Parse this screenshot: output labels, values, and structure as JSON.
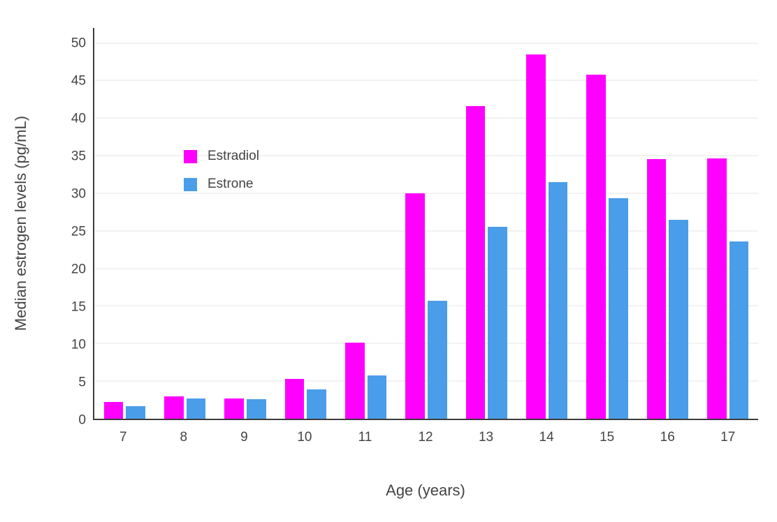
{
  "chart_data": {
    "type": "bar",
    "title": "",
    "xlabel": "Age (years)",
    "ylabel": "Median estrogen levels (pg/mL)",
    "categories": [
      "7",
      "8",
      "9",
      "10",
      "11",
      "12",
      "13",
      "14",
      "15",
      "16",
      "17"
    ],
    "series": [
      {
        "name": "Estradiol",
        "color": "#FF00FF",
        "values": [
          2.2,
          3.0,
          2.7,
          5.3,
          10.1,
          30.0,
          41.6,
          48.5,
          45.8,
          34.5,
          34.6
        ]
      },
      {
        "name": "Estrone",
        "color": "#4A9DE8",
        "values": [
          1.7,
          2.7,
          2.6,
          3.9,
          5.8,
          15.7,
          25.5,
          31.5,
          29.3,
          26.5,
          23.6
        ]
      }
    ],
    "ylim": [
      0,
      52
    ],
    "yticks": [
      0,
      5,
      10,
      15,
      20,
      25,
      30,
      35,
      40,
      45,
      50
    ],
    "grid": "horizontal",
    "legend_position": "inside-upper-left",
    "axis_color": "#3d3d3d",
    "grid_color": "#e5e5e5",
    "text_color": "#444444",
    "background_color": "#ffffff"
  }
}
